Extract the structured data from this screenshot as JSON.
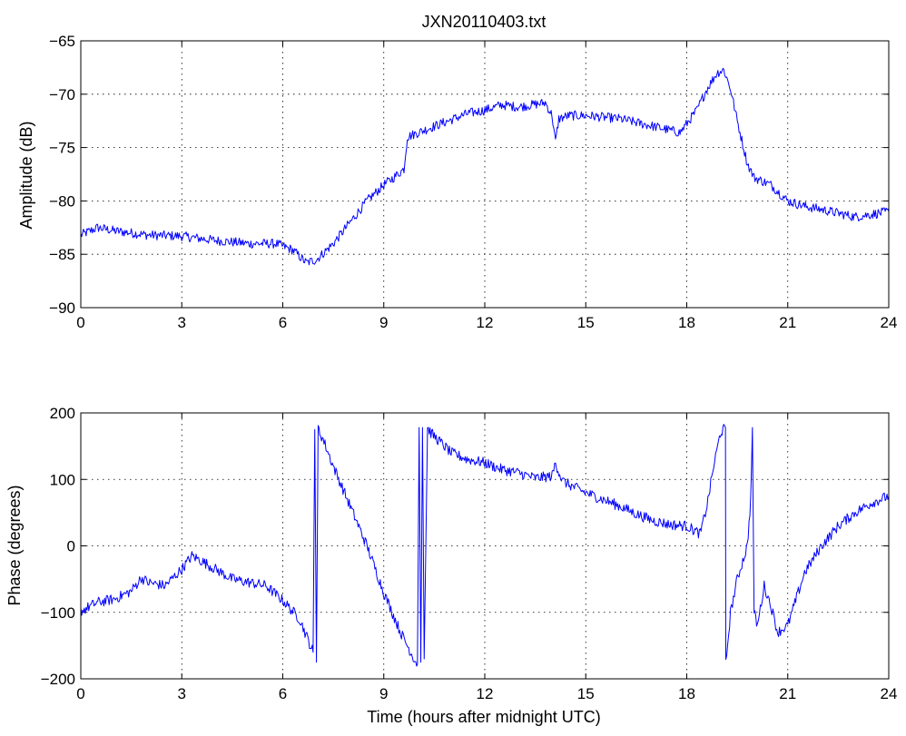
{
  "figure": {
    "title": "JXN20110403.txt",
    "trace_color": "#0000ff"
  },
  "chart_data": [
    {
      "type": "line",
      "title": "JXN20110403.txt",
      "xlabel": "",
      "ylabel": "Amplitude (dB)",
      "xlim": [
        0,
        24
      ],
      "ylim": [
        -90,
        -65
      ],
      "xticks": [
        "0",
        "3",
        "6",
        "9",
        "12",
        "15",
        "18",
        "21",
        "24"
      ],
      "yticks": [
        "−90",
        "−85",
        "−80",
        "−75",
        "−70",
        "−65"
      ],
      "grid": true,
      "series": [
        {
          "color": "#0000ff",
          "x": [
            0,
            0.5,
            1,
            2,
            3,
            4,
            5,
            5.8,
            6.3,
            6.7,
            7.0,
            7.5,
            8.0,
            8.5,
            9.0,
            9.3,
            9.6,
            9.7,
            10.5,
            11.5,
            12.0,
            12.5,
            13.0,
            13.8,
            14.0,
            14.1,
            14.2,
            14.5,
            15.0,
            16.0,
            17.0,
            17.8,
            18.3,
            18.6,
            18.9,
            19.1,
            19.3,
            19.5,
            19.8,
            20.0,
            20.5,
            21.0,
            21.5,
            22.0,
            23.0,
            24.0
          ],
          "y": [
            -83.2,
            -82.5,
            -82.8,
            -83.2,
            -83.3,
            -83.7,
            -84.0,
            -84.0,
            -84.6,
            -85.8,
            -85.5,
            -84.0,
            -82.0,
            -80.0,
            -78.5,
            -77.8,
            -77.0,
            -74.0,
            -73.0,
            -71.8,
            -71.5,
            -71.0,
            -71.2,
            -70.8,
            -72.0,
            -74.5,
            -72.3,
            -72.0,
            -72.0,
            -72.3,
            -73.0,
            -73.6,
            -71.5,
            -69.5,
            -68.0,
            -67.7,
            -69.5,
            -72.5,
            -76.5,
            -77.8,
            -78.5,
            -80.0,
            -80.5,
            -80.8,
            -81.5,
            -81.0
          ]
        }
      ]
    },
    {
      "type": "line",
      "title": "",
      "xlabel": "Time (hours after midnight UTC)",
      "ylabel": "Phase (degrees)",
      "xlim": [
        0,
        24
      ],
      "ylim": [
        -200,
        200
      ],
      "xticks": [
        "0",
        "3",
        "6",
        "9",
        "12",
        "15",
        "18",
        "21",
        "24"
      ],
      "yticks": [
        "−200",
        "−100",
        "0",
        "100",
        "200"
      ],
      "grid": true,
      "series": [
        {
          "color": "#0000ff",
          "x": [
            0,
            0.5,
            1.0,
            1.5,
            1.8,
            2.0,
            2.5,
            3.0,
            3.3,
            3.5,
            4.0,
            4.5,
            5.0,
            5.5,
            6.0,
            6.5,
            6.9,
            6.95,
            7.0,
            7.05,
            7.1,
            7.2,
            7.5,
            8.0,
            8.5,
            9.0,
            9.5,
            9.9,
            10.0,
            10.05,
            10.1,
            10.15,
            10.2,
            10.3,
            10.4,
            10.5,
            11.0,
            11.5,
            12.0,
            12.5,
            13.0,
            13.5,
            14.0,
            14.1,
            14.3,
            14.5,
            15.0,
            15.5,
            16.0,
            16.5,
            17.0,
            17.5,
            18.0,
            18.4,
            18.6,
            18.8,
            19.0,
            19.15,
            19.16,
            19.3,
            19.5,
            19.8,
            19.9,
            19.95,
            20.0,
            20.1,
            20.3,
            20.5,
            20.7,
            21.0,
            21.5,
            22.0,
            22.5,
            23.0,
            23.5,
            24.0
          ],
          "y": [
            -98,
            -85,
            -80,
            -68,
            -48,
            -55,
            -60,
            -35,
            -15,
            -20,
            -35,
            -50,
            -55,
            -60,
            -82,
            -110,
            -160,
            175,
            -175,
            178,
            170,
            160,
            120,
            60,
            0,
            -70,
            -130,
            -170,
            -178,
            178,
            -175,
            178,
            -170,
            178,
            170,
            165,
            140,
            130,
            125,
            115,
            110,
            102,
            105,
            125,
            98,
            92,
            80,
            70,
            60,
            48,
            38,
            32,
            30,
            18,
            60,
            120,
            170,
            178,
            -178,
            -100,
            -50,
            0,
            70,
            178,
            -100,
            -120,
            -60,
            -90,
            -130,
            -120,
            -40,
            0,
            30,
            50,
            65,
            75
          ]
        }
      ]
    }
  ]
}
